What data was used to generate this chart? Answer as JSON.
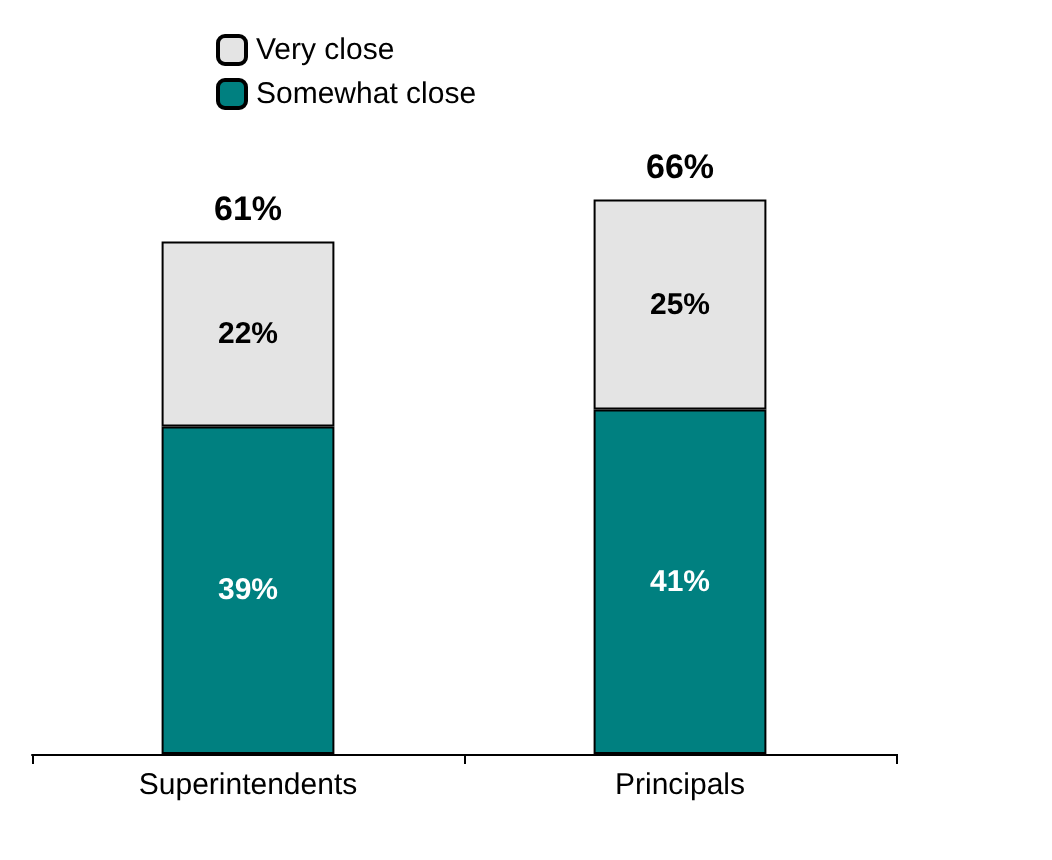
{
  "chart_data": {
    "type": "bar",
    "stacked": true,
    "categories": [
      "Superintendents",
      "Principals"
    ],
    "series": [
      {
        "name": "Somewhat close",
        "color": "#008080",
        "values": [
          39,
          41
        ],
        "value_labels": [
          "39%",
          "41%"
        ]
      },
      {
        "name": "Very close",
        "color": "#e4e4e4",
        "values": [
          22,
          25
        ],
        "value_labels": [
          "22%",
          "25%"
        ]
      }
    ],
    "totals": [
      "61%",
      "66%"
    ],
    "legend": "top left"
  }
}
